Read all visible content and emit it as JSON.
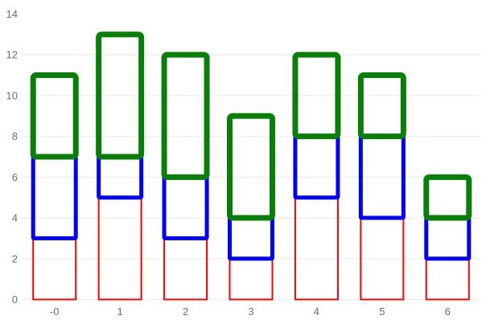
{
  "chart_data": {
    "type": "bar",
    "stacked": true,
    "bar_style": "outline-only",
    "title": "",
    "xlabel": "",
    "ylabel": "",
    "categories": [
      "-0",
      "1",
      "2",
      "3",
      "4",
      "5",
      "6"
    ],
    "series": [
      {
        "name": "red",
        "color": "#ff0000",
        "border_width": 2,
        "corner_radius": 0,
        "values": [
          3,
          5,
          3,
          2,
          5,
          4,
          2
        ]
      },
      {
        "name": "blue",
        "color": "#0000ff",
        "border_width": 5,
        "corner_radius": 1,
        "values": [
          4,
          2,
          3,
          2,
          3,
          4,
          2
        ]
      },
      {
        "name": "green",
        "color": "#088008",
        "border_width": 7,
        "corner_radius": 3.5,
        "values": [
          4,
          6,
          6,
          5,
          4,
          3,
          2
        ]
      }
    ],
    "stack_totals": [
      11,
      13,
      12,
      9,
      12,
      11,
      6
    ],
    "ylim": [
      0,
      14
    ],
    "y_ticks": [
      0,
      2,
      4,
      6,
      8,
      10,
      12,
      14
    ],
    "grid": true,
    "top_gridline_drawn": false,
    "legend": "none",
    "background_color": "#ffffff",
    "gridline_color": "#ededed",
    "axis_label_color": "#6e6e6e"
  }
}
